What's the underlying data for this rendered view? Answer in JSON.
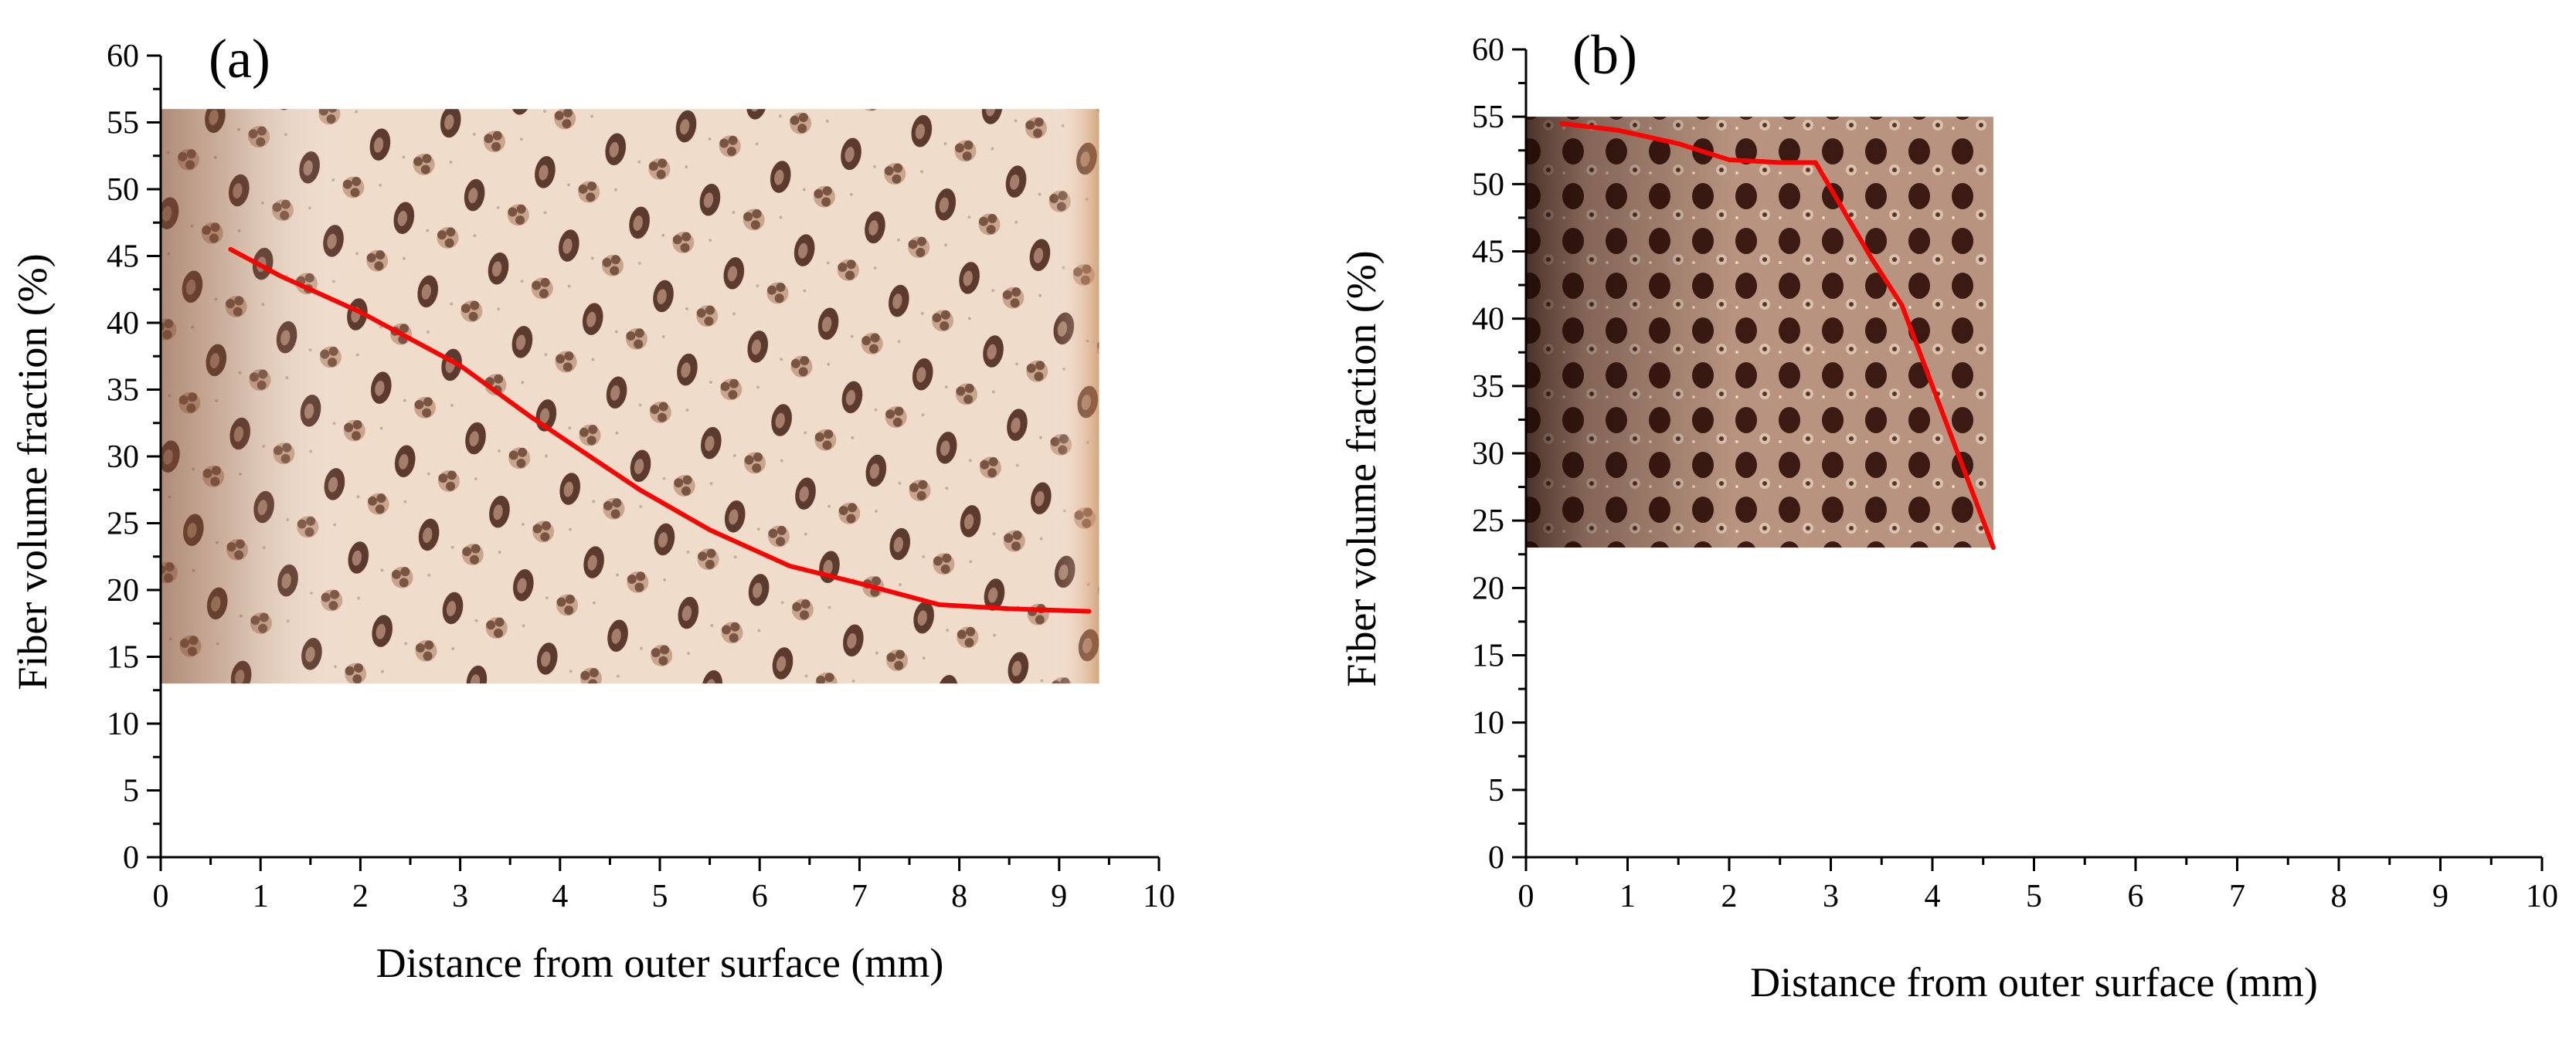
{
  "chart_data": [
    {
      "type": "line",
      "panel_label": "(a)",
      "xlabel": "Distance from outer surface (mm)",
      "ylabel": "Fiber volume fraction (%)",
      "xlim": [
        0,
        10
      ],
      "ylim": [
        0,
        60
      ],
      "xticks": [
        0,
        1,
        2,
        3,
        4,
        5,
        6,
        7,
        8,
        9,
        10
      ],
      "yticks": [
        0,
        5,
        10,
        15,
        20,
        25,
        30,
        35,
        40,
        45,
        50,
        55,
        60
      ],
      "background_image": {
        "description": "micrograph of bamboo culm cross-section (vascular bundles)",
        "x_range": [
          0,
          9.4
        ],
        "y_range": [
          13,
          56
        ]
      },
      "series": [
        {
          "name": "fiber volume fraction",
          "color": "#ff0000",
          "x": [
            0.7,
            1.2,
            2.0,
            3.0,
            3.7,
            4.2,
            4.8,
            5.5,
            6.3,
            7.0,
            7.8,
            8.5,
            9.3
          ],
          "y": [
            45.5,
            43.5,
            40.8,
            36.8,
            33.0,
            30.5,
            27.5,
            24.5,
            21.8,
            20.5,
            18.9,
            18.6,
            18.4
          ]
        }
      ]
    },
    {
      "type": "line",
      "panel_label": "(b)",
      "xlabel": "Distance from outer surface (mm)",
      "ylabel": "Fiber volume fraction (%)",
      "xlim": [
        0,
        10
      ],
      "ylim": [
        0,
        60
      ],
      "xticks": [
        0,
        1,
        2,
        3,
        4,
        5,
        6,
        7,
        8,
        9,
        10
      ],
      "yticks": [
        0,
        5,
        10,
        15,
        20,
        25,
        30,
        35,
        40,
        45,
        50,
        55,
        60
      ],
      "background_image": {
        "description": "micrograph of bamboo culm cross-section (dense vascular bundles)",
        "x_range": [
          0,
          4.6
        ],
        "y_range": [
          23,
          55
        ]
      },
      "series": [
        {
          "name": "fiber volume fraction",
          "color": "#ff0000",
          "x": [
            0.35,
            0.9,
            1.5,
            2.0,
            2.5,
            2.85,
            3.4,
            3.7,
            4.1,
            4.6
          ],
          "y": [
            54.5,
            54.0,
            53.0,
            51.8,
            51.6,
            51.6,
            44.5,
            41.0,
            33.0,
            23.0
          ]
        }
      ]
    }
  ]
}
